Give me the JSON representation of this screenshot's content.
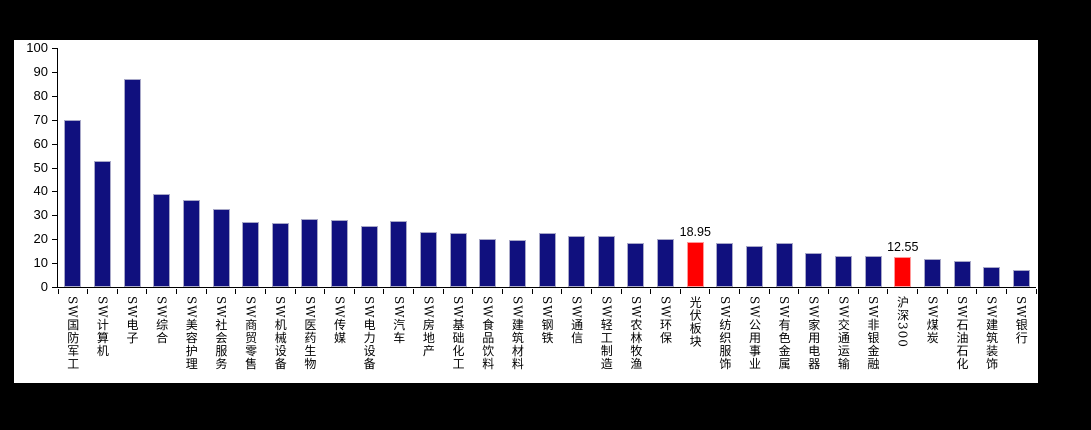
{
  "chart_data": {
    "type": "bar",
    "title": "",
    "xlabel": "",
    "ylabel": "",
    "ylim": [
      0,
      100
    ],
    "yticks": [
      0,
      10,
      20,
      30,
      40,
      50,
      60,
      70,
      80,
      90,
      100
    ],
    "grid": false,
    "legend": false,
    "categories": [
      "SW国防军工",
      "SW计算机",
      "SW电子",
      "SW综合",
      "SW美容护理",
      "SW社会服务",
      "SW商贸零售",
      "SW机械设备",
      "SW医药生物",
      "SW传媒",
      "SW电力设备",
      "SW汽车",
      "SW房地产",
      "SW基础化工",
      "SW食品饮料",
      "SW建筑材料",
      "SW钢铁",
      "SW通信",
      "SW轻工制造",
      "SW农林牧渔",
      "SW环保",
      "光伏板块",
      "SW纺织服饰",
      "SW公用事业",
      "SW有色金属",
      "SW家用电器",
      "SW交通运输",
      "SW非银金融",
      "沪深300",
      "SW煤炭",
      "SW石油石化",
      "SW建筑装饰",
      "SW银行"
    ],
    "values": [
      69.8,
      52.6,
      87.2,
      38.8,
      36.3,
      32.6,
      27.4,
      26.8,
      28.4,
      27.9,
      25.5,
      27.8,
      23.1,
      22.5,
      20.1,
      19.5,
      22.4,
      21.3,
      21.5,
      18.4,
      20.1,
      18.95,
      18.4,
      17.2,
      18.3,
      14.2,
      13.1,
      12.8,
      12.55,
      11.7,
      10.8,
      8.2,
      7.2
    ],
    "highlight_indices": [
      21,
      28
    ],
    "data_labels": [
      {
        "index": 21,
        "text": "18.95"
      },
      {
        "index": 28,
        "text": "12.55"
      }
    ],
    "colors": {
      "canvas_background": "#000000",
      "panel_background": "#ffffff",
      "bar": "#10107e",
      "bar_border": "#a8a8c8",
      "highlight": "#ff0000",
      "highlight_border": "#ff9999",
      "axis": "#000000",
      "text": "#000000"
    }
  }
}
